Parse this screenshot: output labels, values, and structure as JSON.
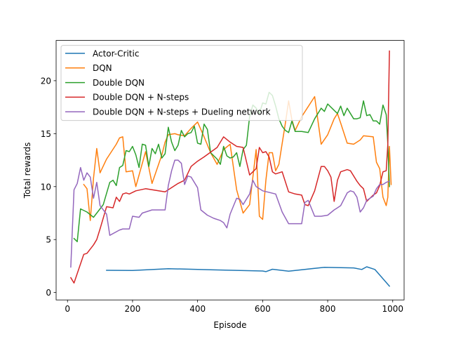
{
  "chart_data": {
    "type": "line",
    "title": "",
    "xlabel": "Episode",
    "ylabel": "Total rewards",
    "xlim": [
      -35,
      1035
    ],
    "ylim": [
      -0.7,
      23.8
    ],
    "xticks": [
      0,
      200,
      400,
      600,
      800,
      1000
    ],
    "yticks": [
      0,
      5,
      10,
      15,
      20
    ],
    "grid": false,
    "legend_position": "top-left",
    "series": [
      {
        "name": "Actor-Critic",
        "color": "#1f77b4",
        "points": [
          [
            120,
            2.1
          ],
          [
            200,
            2.08
          ],
          [
            310,
            2.25
          ],
          [
            440,
            2.15
          ],
          [
            600,
            2.03
          ],
          [
            610,
            1.97
          ],
          [
            630,
            2.2
          ],
          [
            680,
            2.02
          ],
          [
            790,
            2.38
          ],
          [
            880,
            2.32
          ],
          [
            905,
            2.18
          ],
          [
            920,
            2.43
          ],
          [
            945,
            2.18
          ],
          [
            990,
            0.6
          ]
        ]
      },
      {
        "name": "DQN",
        "color": "#ff7f0e",
        "points": [
          [
            50,
            10.2
          ],
          [
            60,
            9.8
          ],
          [
            70,
            6.8
          ],
          [
            80,
            10.8
          ],
          [
            90,
            13.6
          ],
          [
            100,
            11.3
          ],
          [
            120,
            12.6
          ],
          [
            150,
            14.0
          ],
          [
            160,
            14.6
          ],
          [
            170,
            14.7
          ],
          [
            180,
            11.4
          ],
          [
            200,
            11.5
          ],
          [
            210,
            10.0
          ],
          [
            240,
            13.3
          ],
          [
            260,
            10.3
          ],
          [
            290,
            13.0
          ],
          [
            300,
            14.2
          ],
          [
            310,
            14.9
          ],
          [
            330,
            15.0
          ],
          [
            340,
            14.9
          ],
          [
            360,
            14.8
          ],
          [
            380,
            15.5
          ],
          [
            400,
            16.1
          ],
          [
            420,
            14.7
          ],
          [
            440,
            13.2
          ],
          [
            460,
            12.1
          ],
          [
            480,
            13.5
          ],
          [
            500,
            14.0
          ],
          [
            520,
            9.7
          ],
          [
            540,
            7.5
          ],
          [
            560,
            8.3
          ],
          [
            580,
            13.5
          ],
          [
            590,
            7.2
          ],
          [
            600,
            6.9
          ],
          [
            610,
            10.6
          ],
          [
            620,
            13.2
          ],
          [
            630,
            13.2
          ],
          [
            640,
            11.5
          ],
          [
            650,
            12.1
          ],
          [
            670,
            16.0
          ],
          [
            680,
            18.1
          ],
          [
            690,
            16.3
          ],
          [
            700,
            15.3
          ],
          [
            720,
            16.6
          ],
          [
            760,
            18.5
          ],
          [
            780,
            14.0
          ],
          [
            800,
            14.9
          ],
          [
            820,
            16.4
          ],
          [
            830,
            16.9
          ],
          [
            840,
            16.0
          ],
          [
            860,
            14.1
          ],
          [
            880,
            14.0
          ],
          [
            900,
            14.4
          ],
          [
            910,
            14.8
          ],
          [
            940,
            14.7
          ],
          [
            950,
            12.3
          ],
          [
            960,
            11.7
          ],
          [
            970,
            9.0
          ],
          [
            980,
            8.2
          ],
          [
            985,
            9.0
          ],
          [
            990,
            13.8
          ],
          [
            995,
            10.2
          ]
        ]
      },
      {
        "name": "Double DQN",
        "color": "#2ca02c",
        "points": [
          [
            20,
            5.1
          ],
          [
            30,
            4.8
          ],
          [
            40,
            7.9
          ],
          [
            60,
            7.6
          ],
          [
            80,
            7.1
          ],
          [
            100,
            7.9
          ],
          [
            110,
            8.3
          ],
          [
            130,
            10.4
          ],
          [
            140,
            10.6
          ],
          [
            150,
            10.1
          ],
          [
            160,
            11.8
          ],
          [
            170,
            12.0
          ],
          [
            180,
            13.4
          ],
          [
            190,
            13.3
          ],
          [
            200,
            13.8
          ],
          [
            210,
            13.0
          ],
          [
            220,
            11.8
          ],
          [
            230,
            14.0
          ],
          [
            240,
            13.9
          ],
          [
            250,
            11.9
          ],
          [
            260,
            13.6
          ],
          [
            270,
            13.1
          ],
          [
            280,
            14.0
          ],
          [
            290,
            12.7
          ],
          [
            300,
            13.1
          ],
          [
            310,
            15.6
          ],
          [
            320,
            14.2
          ],
          [
            330,
            13.4
          ],
          [
            340,
            13.9
          ],
          [
            350,
            15.3
          ],
          [
            360,
            14.7
          ],
          [
            370,
            15.0
          ],
          [
            380,
            15.1
          ],
          [
            390,
            15.7
          ],
          [
            400,
            14.1
          ],
          [
            410,
            14.0
          ],
          [
            420,
            15.9
          ],
          [
            430,
            15.4
          ],
          [
            440,
            13.2
          ],
          [
            450,
            12.9
          ],
          [
            460,
            12.6
          ],
          [
            470,
            12.1
          ],
          [
            480,
            13.8
          ],
          [
            490,
            12.9
          ],
          [
            500,
            12.7
          ],
          [
            510,
            12.8
          ],
          [
            520,
            13.2
          ],
          [
            530,
            11.9
          ],
          [
            540,
            13.5
          ],
          [
            550,
            13.9
          ],
          [
            560,
            16.6
          ],
          [
            570,
            17.7
          ],
          [
            580,
            17.4
          ],
          [
            590,
            16.9
          ],
          [
            600,
            17.9
          ],
          [
            610,
            17.8
          ],
          [
            620,
            18.9
          ],
          [
            630,
            18.6
          ],
          [
            640,
            17.6
          ],
          [
            650,
            16.4
          ],
          [
            660,
            15.7
          ],
          [
            670,
            15.3
          ],
          [
            680,
            15.1
          ],
          [
            690,
            16.2
          ],
          [
            700,
            15.2
          ],
          [
            710,
            15.2
          ],
          [
            720,
            15.2
          ],
          [
            740,
            15.1
          ],
          [
            760,
            16.4
          ],
          [
            780,
            17.4
          ],
          [
            790,
            17.1
          ],
          [
            800,
            17.8
          ],
          [
            820,
            17.2
          ],
          [
            830,
            16.9
          ],
          [
            840,
            17.6
          ],
          [
            850,
            16.7
          ],
          [
            860,
            17.4
          ],
          [
            870,
            16.9
          ],
          [
            880,
            16.4
          ],
          [
            890,
            16.4
          ],
          [
            900,
            16.5
          ],
          [
            910,
            18.1
          ],
          [
            920,
            16.7
          ],
          [
            930,
            16.8
          ],
          [
            940,
            16.2
          ],
          [
            950,
            16.2
          ],
          [
            960,
            15.9
          ],
          [
            970,
            17.7
          ],
          [
            980,
            16.8
          ],
          [
            985,
            14.0
          ],
          [
            990,
            10.0
          ]
        ]
      },
      {
        "name": "Double DQN + N-steps",
        "color": "#d62728",
        "points": [
          [
            10,
            1.4
          ],
          [
            20,
            0.9
          ],
          [
            50,
            3.6
          ],
          [
            60,
            3.7
          ],
          [
            80,
            4.5
          ],
          [
            90,
            5.0
          ],
          [
            100,
            6.0
          ],
          [
            120,
            8.1
          ],
          [
            140,
            8.0
          ],
          [
            150,
            9.0
          ],
          [
            160,
            8.6
          ],
          [
            170,
            9.3
          ],
          [
            180,
            9.4
          ],
          [
            190,
            9.3
          ],
          [
            210,
            9.6
          ],
          [
            240,
            9.8
          ],
          [
            300,
            9.5
          ],
          [
            340,
            10.3
          ],
          [
            360,
            10.6
          ],
          [
            380,
            11.9
          ],
          [
            400,
            12.4
          ],
          [
            420,
            12.8
          ],
          [
            460,
            13.7
          ],
          [
            480,
            14.7
          ],
          [
            500,
            14.2
          ],
          [
            520,
            13.8
          ],
          [
            540,
            13.7
          ],
          [
            560,
            11.1
          ],
          [
            580,
            11.7
          ],
          [
            590,
            13.7
          ],
          [
            600,
            13.2
          ],
          [
            610,
            13.3
          ],
          [
            620,
            12.8
          ],
          [
            630,
            11.4
          ],
          [
            640,
            11.2
          ],
          [
            660,
            11.4
          ],
          [
            680,
            9.5
          ],
          [
            700,
            9.3
          ],
          [
            720,
            9.2
          ],
          [
            730,
            8.3
          ],
          [
            740,
            8.2
          ],
          [
            760,
            9.6
          ],
          [
            780,
            11.9
          ],
          [
            790,
            11.9
          ],
          [
            800,
            11.5
          ],
          [
            810,
            10.9
          ],
          [
            820,
            8.6
          ],
          [
            830,
            10.6
          ],
          [
            840,
            11.4
          ],
          [
            860,
            11.6
          ],
          [
            870,
            11.5
          ],
          [
            890,
            10.5
          ],
          [
            900,
            10.1
          ],
          [
            910,
            9.8
          ],
          [
            920,
            8.6
          ],
          [
            930,
            8.9
          ],
          [
            940,
            9.2
          ],
          [
            950,
            9.4
          ],
          [
            960,
            10.1
          ],
          [
            970,
            11.4
          ],
          [
            980,
            11.5
          ],
          [
            985,
            14.0
          ],
          [
            990,
            22.8
          ]
        ]
      },
      {
        "name": "Double DQN + N-steps + Dueling network",
        "color": "#9467bd",
        "points": [
          [
            10,
            2.4
          ],
          [
            20,
            9.7
          ],
          [
            30,
            10.3
          ],
          [
            40,
            11.8
          ],
          [
            50,
            10.6
          ],
          [
            60,
            11.3
          ],
          [
            70,
            10.9
          ],
          [
            80,
            8.9
          ],
          [
            90,
            10.4
          ],
          [
            100,
            8.2
          ],
          [
            120,
            7.4
          ],
          [
            130,
            5.4
          ],
          [
            160,
            5.9
          ],
          [
            170,
            6.0
          ],
          [
            190,
            6.0
          ],
          [
            200,
            7.2
          ],
          [
            220,
            7.1
          ],
          [
            230,
            7.5
          ],
          [
            260,
            7.8
          ],
          [
            300,
            7.8
          ],
          [
            310,
            10.1
          ],
          [
            320,
            11.5
          ],
          [
            330,
            12.5
          ],
          [
            340,
            12.5
          ],
          [
            350,
            12.2
          ],
          [
            360,
            10.2
          ],
          [
            370,
            11.0
          ],
          [
            380,
            10.9
          ],
          [
            400,
            9.9
          ],
          [
            410,
            7.8
          ],
          [
            430,
            7.3
          ],
          [
            450,
            7.0
          ],
          [
            470,
            6.8
          ],
          [
            480,
            6.6
          ],
          [
            490,
            6.1
          ],
          [
            500,
            7.4
          ],
          [
            520,
            8.9
          ],
          [
            530,
            8.8
          ],
          [
            540,
            8.3
          ],
          [
            560,
            9.3
          ],
          [
            570,
            10.6
          ],
          [
            580,
            10.0
          ],
          [
            590,
            9.8
          ],
          [
            600,
            9.6
          ],
          [
            640,
            9.3
          ],
          [
            660,
            7.6
          ],
          [
            680,
            6.5
          ],
          [
            700,
            6.5
          ],
          [
            720,
            6.5
          ],
          [
            730,
            8.5
          ],
          [
            740,
            8.7
          ],
          [
            760,
            7.2
          ],
          [
            780,
            7.2
          ],
          [
            800,
            7.3
          ],
          [
            820,
            7.8
          ],
          [
            830,
            8.0
          ],
          [
            840,
            8.2
          ],
          [
            860,
            9.4
          ],
          [
            870,
            9.6
          ],
          [
            880,
            9.5
          ],
          [
            890,
            9.0
          ],
          [
            900,
            7.6
          ],
          [
            910,
            8.0
          ],
          [
            920,
            8.7
          ],
          [
            940,
            9.1
          ],
          [
            950,
            9.8
          ],
          [
            960,
            10.2
          ],
          [
            970,
            10.2
          ],
          [
            980,
            10.4
          ],
          [
            990,
            10.5
          ]
        ]
      }
    ]
  }
}
